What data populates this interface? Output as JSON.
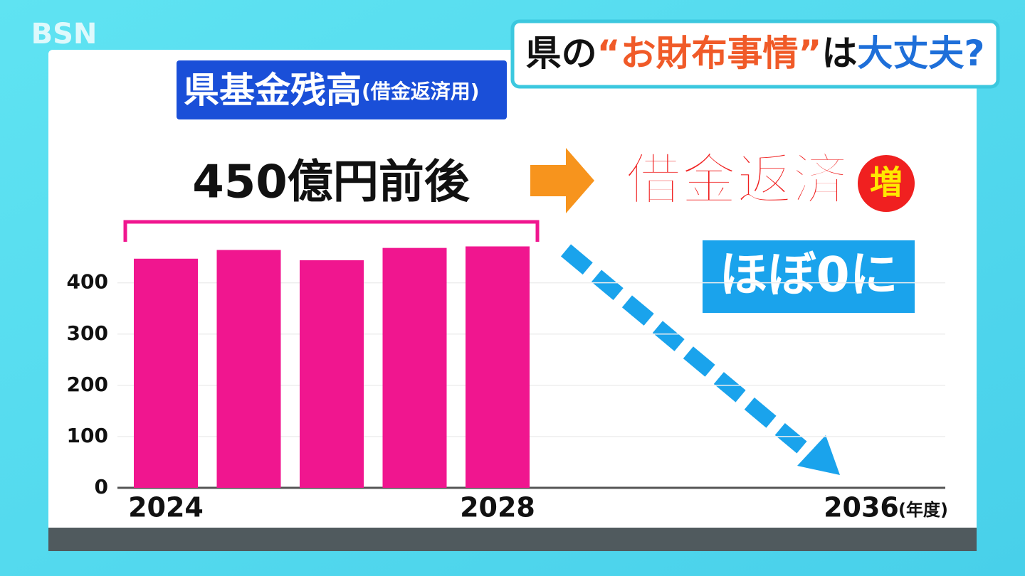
{
  "logo": "BSN",
  "headline": {
    "parts": [
      "県の",
      "“お財布事情”",
      "は",
      "大丈夫?"
    ]
  },
  "chart_data": {
    "type": "bar",
    "title": "県基金残高",
    "subtitle": "(借金返済用)",
    "x_label": "(年度)",
    "categories": [
      "2024",
      null,
      null,
      null,
      "2028",
      "2036"
    ],
    "values": [
      447,
      464,
      444,
      468,
      471,
      null
    ],
    "color": "#f0168f",
    "ylim": [
      0,
      480
    ],
    "yticks": [
      0,
      100,
      200,
      300,
      400
    ],
    "grid": true,
    "annotations": [
      "450億円前後",
      "借金返済",
      "増",
      "ほぼ0に"
    ]
  }
}
